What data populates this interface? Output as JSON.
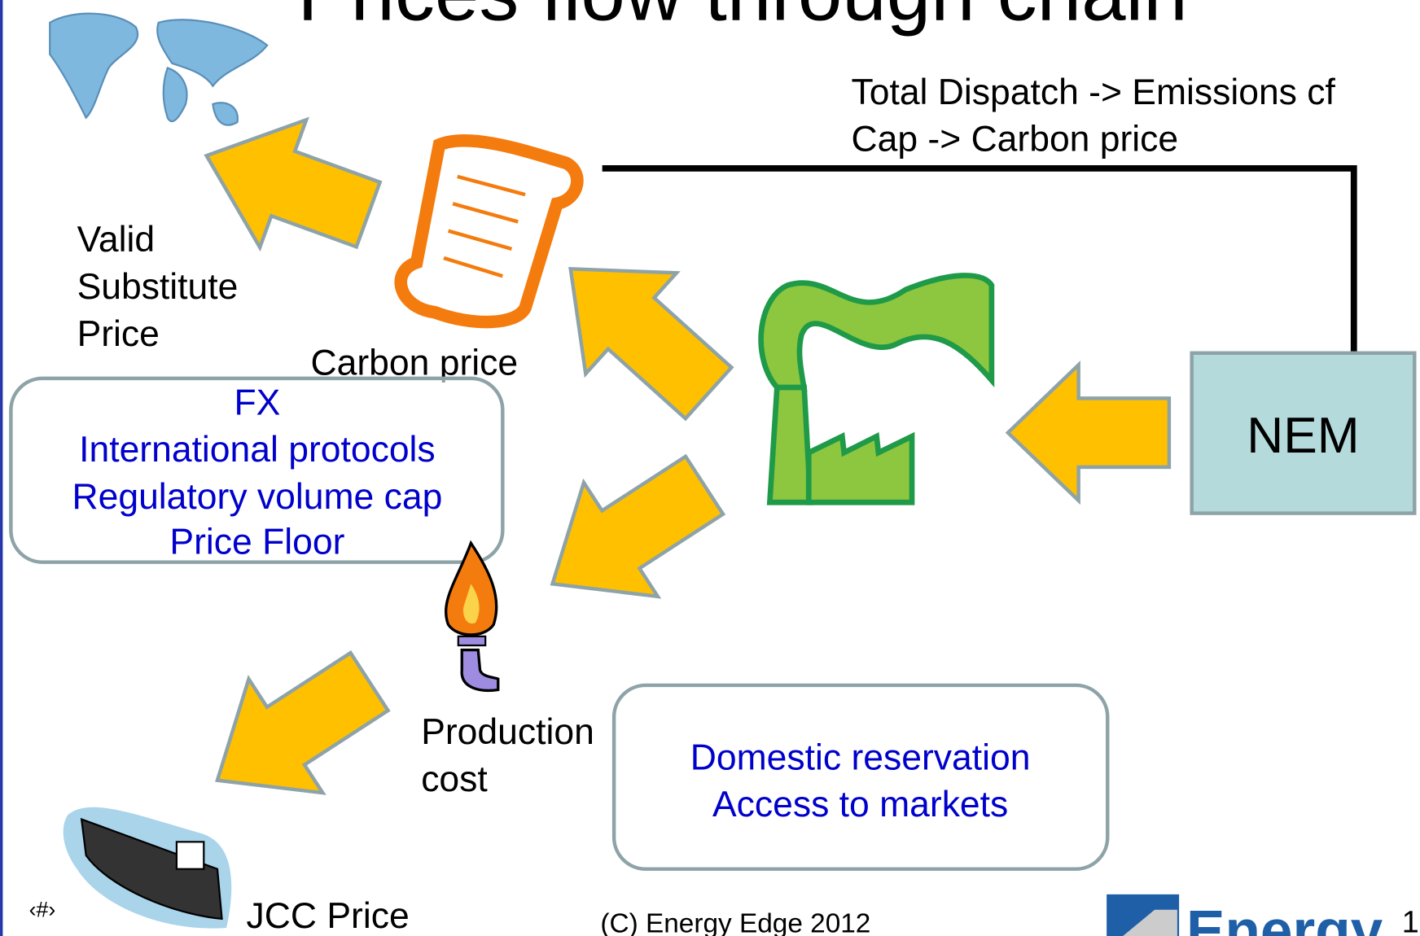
{
  "title": "Prices flow through chain",
  "emissions_note": [
    "Total Dispatch -> Emissions cf",
    "Cap -> Carbon price"
  ],
  "substitute_label": [
    "Valid",
    "Substitute",
    "Price"
  ],
  "carbon_label": "Carbon price",
  "drivers_box": [
    "FX",
    "International protocols",
    "Regulatory volume cap",
    "Price Floor"
  ],
  "nem_label": "NEM",
  "production_label": [
    "Production",
    "cost"
  ],
  "domestic_box": [
    "Domestic reservation",
    "Access to markets"
  ],
  "jcc_label": "JCC Price",
  "footer": {
    "slide_number": "‹#›",
    "copyright": "(C) Energy Edge 2012",
    "logo": "Energy",
    "page": "1"
  }
}
